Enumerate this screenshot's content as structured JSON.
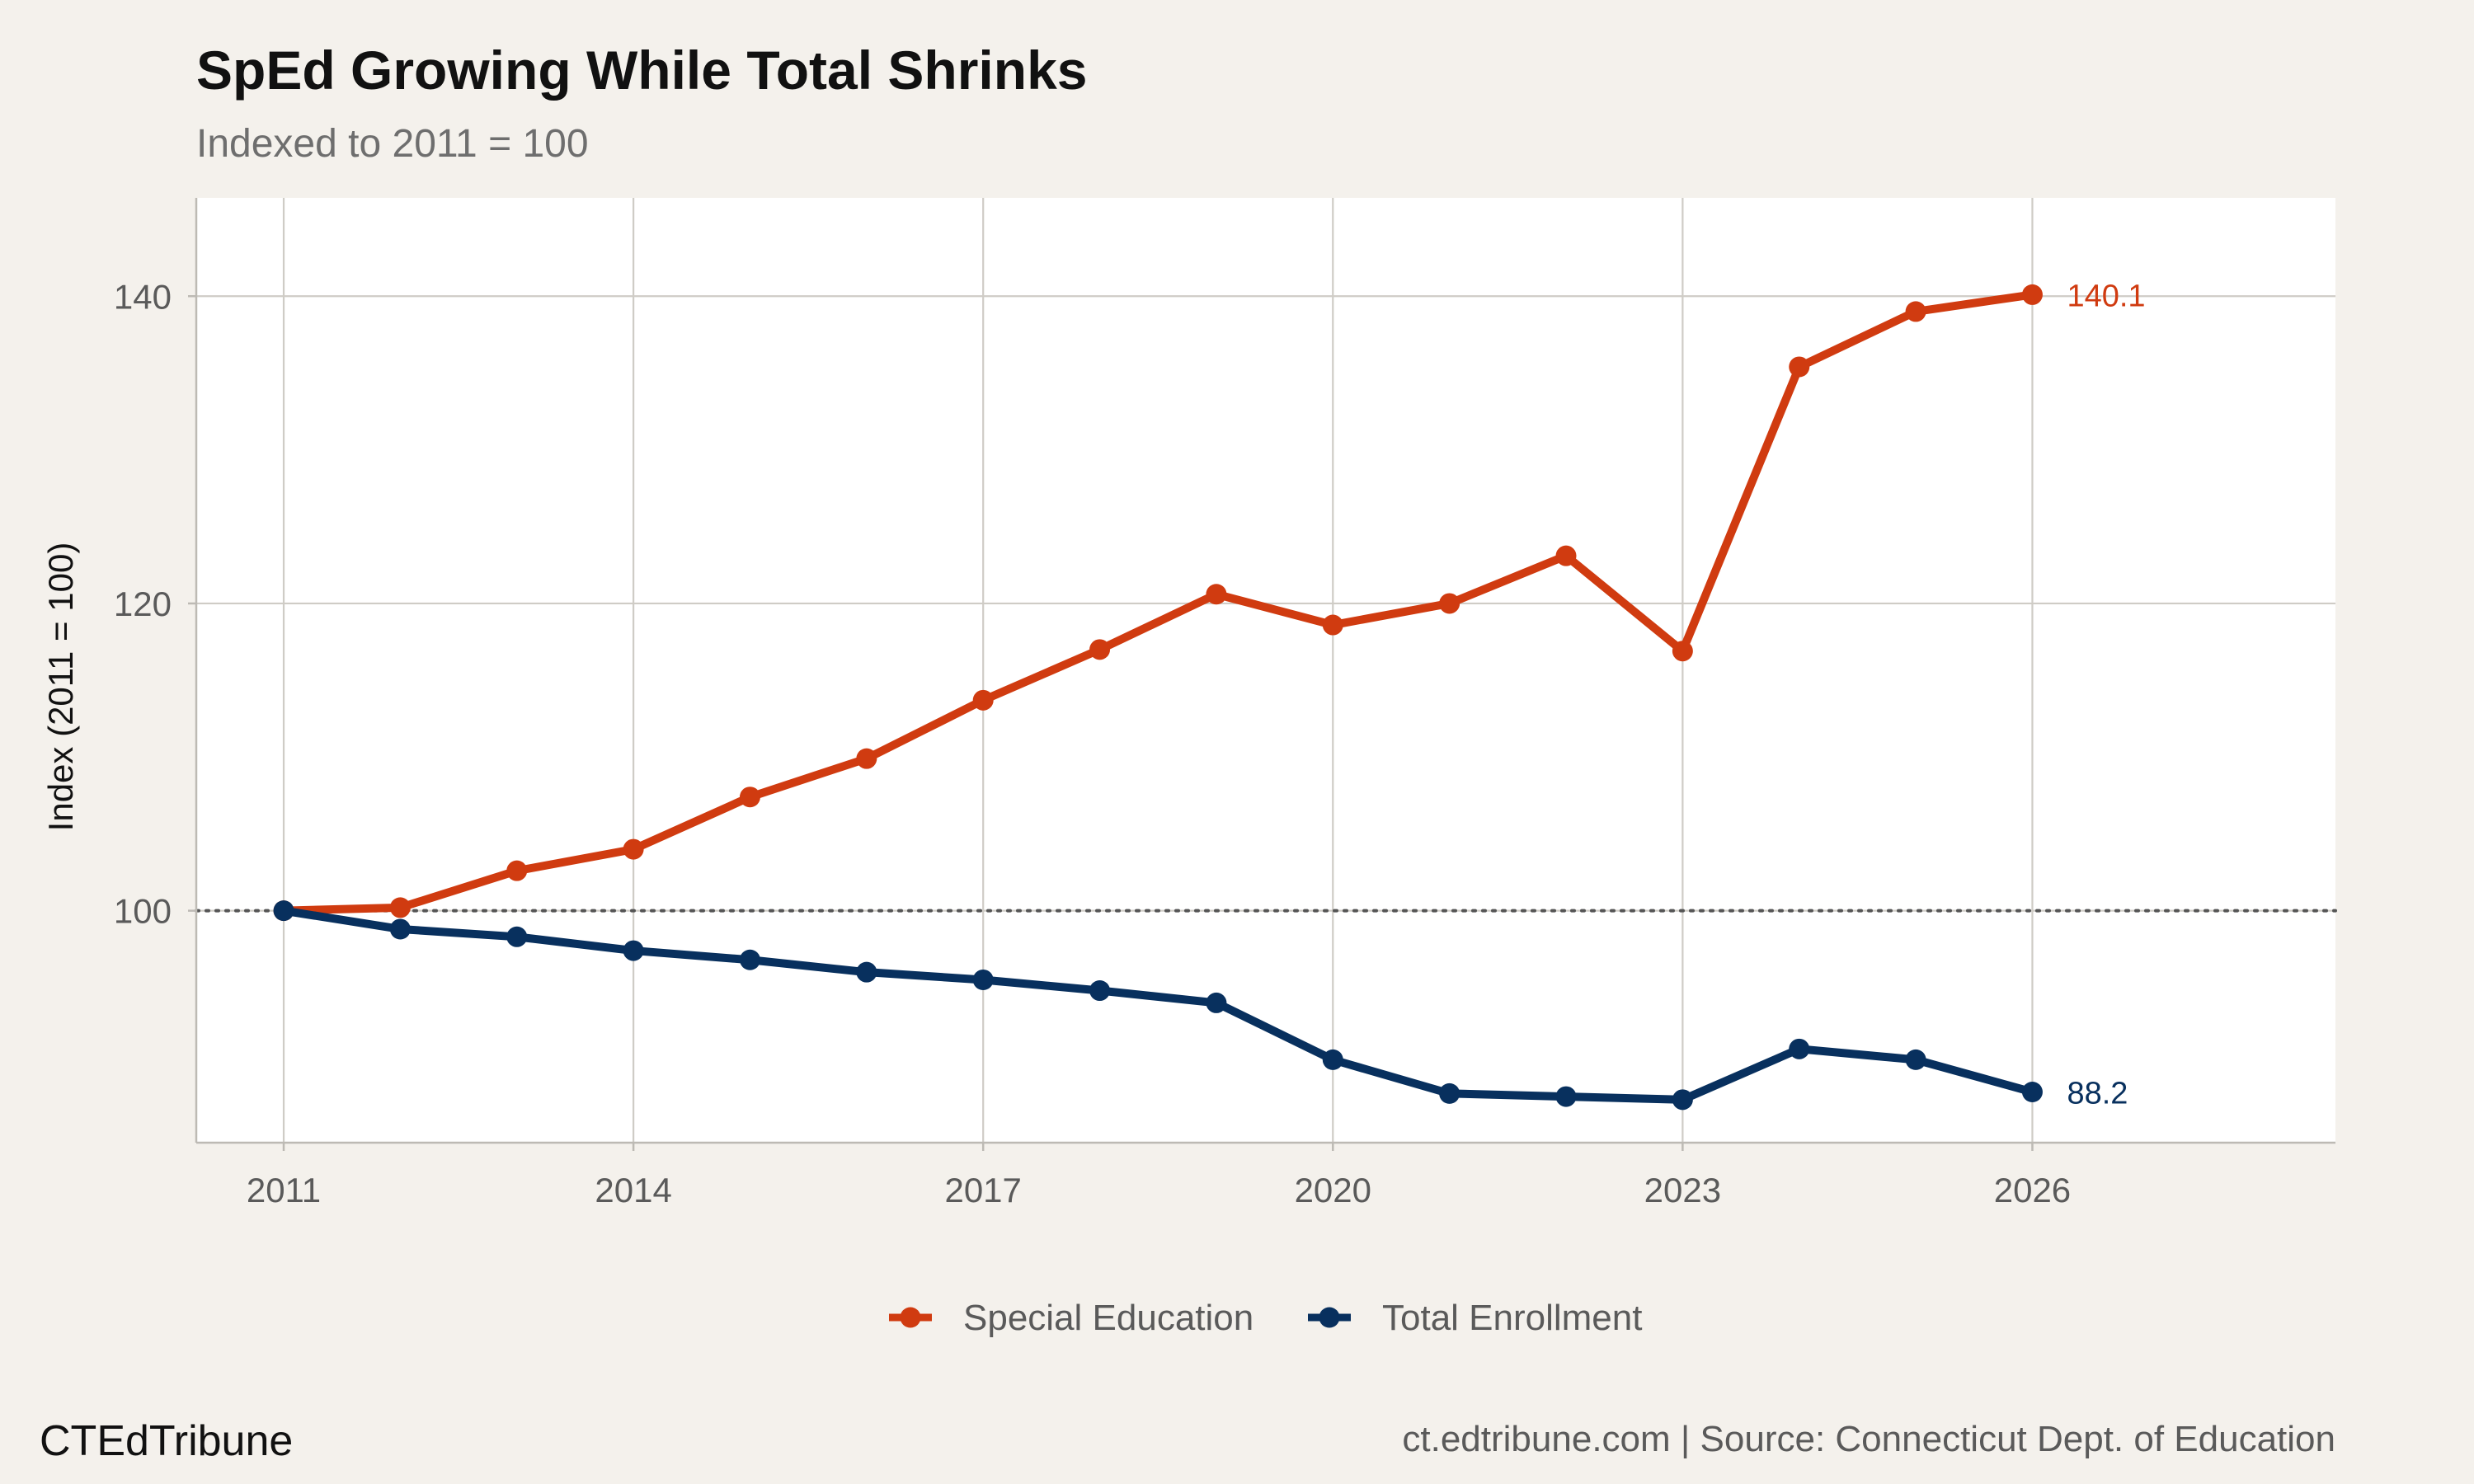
{
  "chart_data": {
    "type": "line",
    "title": "SpEd Growing While Total Shrinks",
    "subtitle": "Indexed to 2011 = 100",
    "xlabel": "",
    "ylabel": "Index (2011 = 100)",
    "x": [
      2011,
      2012,
      2013,
      2014,
      2015,
      2016,
      2017,
      2018,
      2019,
      2020,
      2021,
      2022,
      2023,
      2024,
      2025,
      2026
    ],
    "x_ticks": [
      "2011",
      "2014",
      "2017",
      "2020",
      "2023",
      "2026"
    ],
    "y_ticks": [
      "100",
      "120",
      "140"
    ],
    "xlim": [
      2010.25,
      2028.6
    ],
    "ylim": [
      84.9,
      146.4
    ],
    "reference_line": 100,
    "grid": true,
    "legend_position": "bottom",
    "series": [
      {
        "name": "Special Education",
        "color": "#d03b10",
        "values": [
          100,
          100.2,
          102.6,
          104.0,
          107.4,
          109.9,
          113.7,
          117.0,
          120.6,
          118.6,
          120.0,
          123.1,
          116.9,
          135.4,
          139.0,
          140.1
        ],
        "end_label": "140.1"
      },
      {
        "name": "Total Enrollment",
        "color": "#08305e",
        "values": [
          100,
          98.8,
          98.3,
          97.4,
          96.8,
          96.0,
          95.5,
          94.8,
          94.0,
          90.3,
          88.1,
          87.9,
          87.7,
          91.0,
          90.3,
          88.2
        ],
        "end_label": "88.2"
      }
    ]
  },
  "caption": {
    "brand": "CTEdTribune",
    "source": "ct.edtribune.com | Source: Connecticut Dept. of Education"
  }
}
